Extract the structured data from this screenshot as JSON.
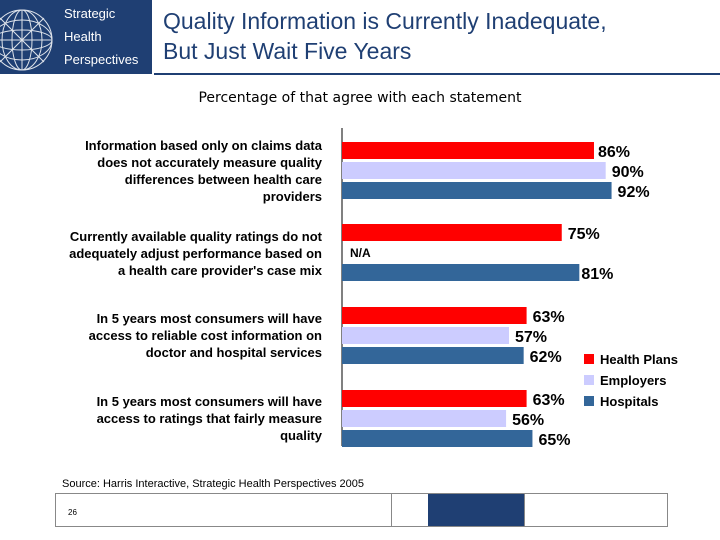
{
  "header": {
    "logo_lines": [
      "Strategic",
      "Health",
      "Perspectives"
    ],
    "title_lines": [
      "Quality Information is Currently Inadequate,",
      "But Just Wait Five Years"
    ]
  },
  "subtitle": "Percentage of that agree with each statement",
  "chart_data": {
    "type": "bar",
    "orientation": "horizontal",
    "title": "Percentage of that agree with each statement",
    "categories": [
      "Information based only on claims data does not accurately measure quality differences between health care providers",
      "Currently available quality ratings do not adequately adjust performance based on a health care provider's case mix",
      "In 5 years most consumers will have access to reliable cost information on doctor and hospital services",
      "In 5 years most consumers will have access to ratings that fairly measure quality"
    ],
    "category_lines": [
      [
        "Information based only on claims data",
        "does not accurately measure quality",
        "differences between health care",
        "providers"
      ],
      [
        "Currently available quality ratings do not",
        "adequately adjust performance based on",
        "a health care provider's case mix"
      ],
      [
        "In 5 years most consumers will have",
        "access to reliable cost information on",
        "doctor and hospital services"
      ],
      [
        "In 5 years most consumers will have",
        "access to ratings that fairly measure",
        "quality"
      ]
    ],
    "series": [
      {
        "name": "Health Plans",
        "color": "#ff0000",
        "values": [
          86,
          75,
          63,
          63
        ],
        "labels": [
          "86%",
          "75%",
          "63%",
          "63%"
        ]
      },
      {
        "name": "Employers",
        "color": "#ccccff",
        "values": [
          90,
          null,
          57,
          56
        ],
        "labels": [
          "90%",
          "N/A",
          "57%",
          "56%"
        ]
      },
      {
        "name": "Hospitals",
        "color": "#336699",
        "values": [
          92,
          81,
          62,
          65
        ],
        "labels": [
          "92%",
          "81%",
          "62%",
          "65%"
        ]
      }
    ],
    "xlim": [
      0,
      100
    ],
    "legend_position": "right"
  },
  "footer": {
    "source": "Source: Harris Interactive, Strategic Health Perspectives 2005",
    "page_number": "26"
  }
}
